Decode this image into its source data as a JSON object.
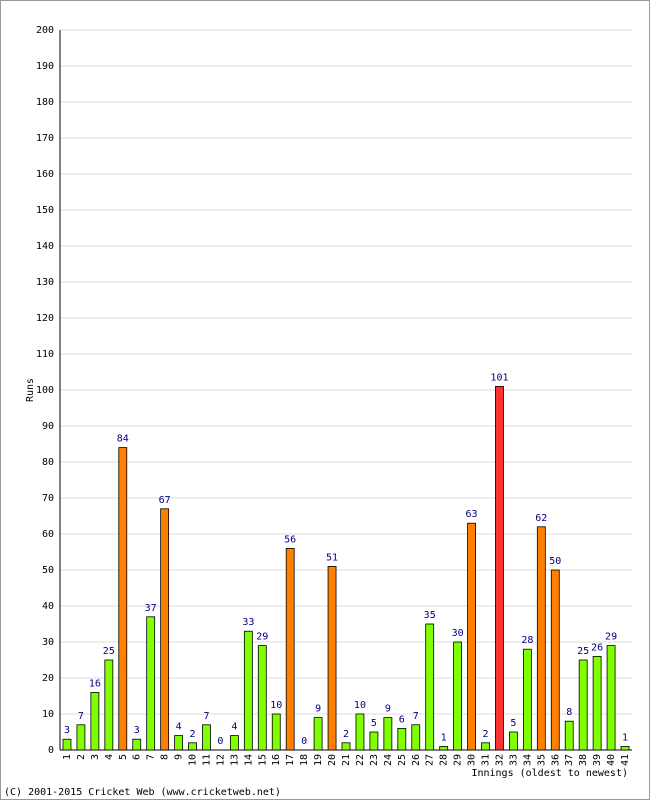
{
  "chart_data": {
    "type": "bar",
    "y_label": "Runs",
    "x_label": "Innings (oldest to newest)",
    "footer": "(C) 2001-2015 Cricket Web (www.cricketweb.net)",
    "categories": [
      "1",
      "2",
      "3",
      "4",
      "5",
      "6",
      "7",
      "8",
      "9",
      "10",
      "11",
      "12",
      "13",
      "14",
      "15",
      "16",
      "17",
      "18",
      "19",
      "20",
      "21",
      "22",
      "23",
      "24",
      "25",
      "26",
      "27",
      "28",
      "29",
      "30",
      "31",
      "32",
      "33",
      "34",
      "35",
      "36",
      "37",
      "38",
      "39",
      "40",
      "41"
    ],
    "values": [
      3,
      7,
      16,
      25,
      84,
      3,
      37,
      67,
      4,
      2,
      7,
      0,
      4,
      33,
      29,
      10,
      56,
      0,
      9,
      51,
      2,
      10,
      5,
      9,
      6,
      7,
      35,
      1,
      30,
      63,
      2,
      101,
      5,
      28,
      62,
      50,
      8,
      25,
      26,
      29,
      1
    ],
    "colors": [
      "#80ff00",
      "#80ff00",
      "#80ff00",
      "#80ff00",
      "#ff8000",
      "#80ff00",
      "#80ff00",
      "#ff8000",
      "#80ff00",
      "#80ff00",
      "#80ff00",
      "#80ff00",
      "#80ff00",
      "#80ff00",
      "#80ff00",
      "#80ff00",
      "#ff8000",
      "#80ff00",
      "#80ff00",
      "#ff8000",
      "#80ff00",
      "#80ff00",
      "#80ff00",
      "#80ff00",
      "#80ff00",
      "#80ff00",
      "#80ff00",
      "#80ff00",
      "#80ff00",
      "#ff8000",
      "#80ff00",
      "#ff3333",
      "#80ff00",
      "#80ff00",
      "#ff8000",
      "#ff8000",
      "#80ff00",
      "#80ff00",
      "#80ff00",
      "#80ff00",
      "#80ff00"
    ],
    "ylim": [
      0,
      200
    ],
    "yticks": [
      0,
      10,
      20,
      30,
      40,
      50,
      60,
      70,
      80,
      90,
      100,
      110,
      120,
      130,
      140,
      150,
      160,
      170,
      180,
      190,
      200
    ],
    "grid": true
  }
}
